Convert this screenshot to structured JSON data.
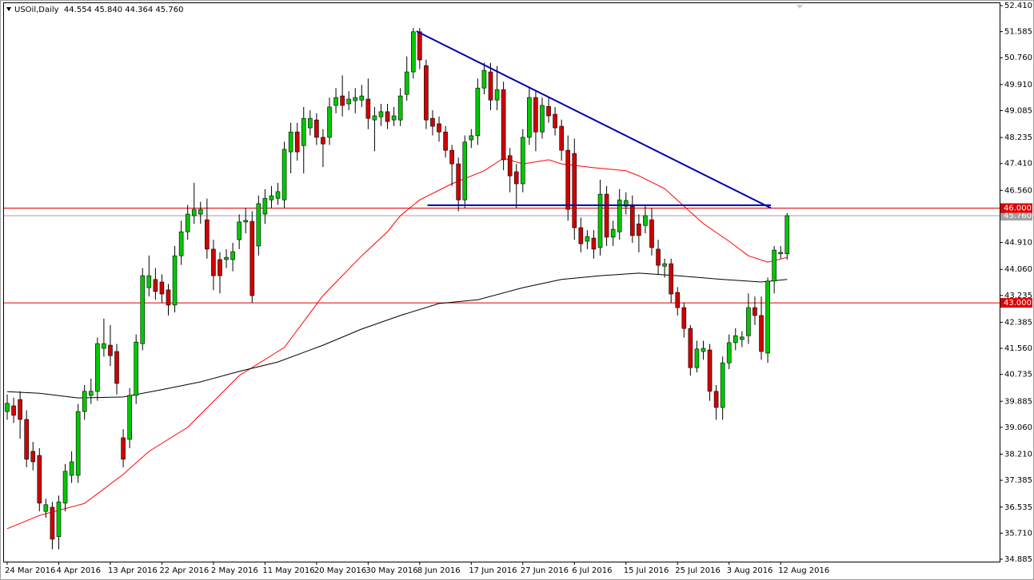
{
  "chart_data": {
    "type": "candlestick",
    "title": "USOil,Daily  44.554 45.840 44.364 45.760",
    "categories": [
      "24 Mar 2016",
      null,
      null,
      null,
      null,
      null,
      null,
      null,
      "4 Apr 2016",
      null,
      null,
      null,
      null,
      null,
      null,
      null,
      "13 Apr 2016",
      null,
      null,
      null,
      null,
      null,
      null,
      null,
      "22 Apr 2016",
      null,
      null,
      null,
      null,
      null,
      null,
      null,
      "2 May 2016",
      null,
      null,
      null,
      null,
      null,
      null,
      null,
      "11 May 2016",
      null,
      null,
      null,
      null,
      null,
      null,
      null,
      "20 May 2016",
      null,
      null,
      null,
      null,
      null,
      null,
      null,
      "30 May 2016",
      null,
      null,
      null,
      null,
      null,
      null,
      null,
      "8 Jun 2016",
      null,
      null,
      null,
      null,
      null,
      null,
      null,
      "17 Jun 2016",
      null,
      null,
      null,
      null,
      null,
      null,
      null,
      "27 Jun 2016",
      null,
      null,
      null,
      null,
      null,
      null,
      null,
      "6 Jul 2016",
      null,
      null,
      null,
      null,
      null,
      null,
      null,
      "15 Jul 2016",
      null,
      null,
      null,
      null,
      null,
      null,
      null,
      "25 Jul 2016",
      null,
      null,
      null,
      null,
      null,
      null,
      null,
      "3 Aug 2016",
      null,
      null,
      null,
      null,
      null,
      null,
      null,
      "12 Aug 2016",
      null
    ],
    "open": [
      39.56,
      39.74,
      39.94,
      39.31,
      38.3,
      38.17,
      36.4,
      36.53,
      35.6,
      36.66,
      37.54,
      37.54,
      39.56,
      40.07,
      40.2,
      41.56,
      41.66,
      41.46,
      38.73,
      38.68,
      40.07,
      41.71,
      43.48,
      43.74,
      43.66,
      43.41,
      42.93,
      44.49,
      45.25,
      45.76,
      45.81,
      45.63,
      44.7,
      44.37,
      44.37,
      44.37,
      45.0,
      45.56,
      45.58,
      44.8,
      45.81,
      46.26,
      46.31,
      46.26,
      47.78,
      48.41,
      47.98,
      48.54,
      48.79,
      48.24,
      48.24,
      49.25,
      49.55,
      49.3,
      49.4,
      49.42,
      49.45,
      48.79,
      48.89,
      49.05,
      48.79,
      48.79,
      49.6,
      50.31,
      51.58,
      50.51,
      48.84,
      48.67,
      48.41,
      47.83,
      47.4,
      46.26,
      48.16,
      48.29,
      49.8,
      50.31,
      49.42,
      49.75,
      47.66,
      47.15,
      46.77,
      48.24,
      49.5,
      48.41,
      49.22,
      48.97,
      48.59,
      47.83,
      47.73,
      45.38,
      44.95,
      45.05,
      44.75,
      46.44,
      45.08,
      45.25,
      46.06,
      46.06,
      45.5,
      45.45,
      45.63,
      44.7,
      44.16,
      44.24,
      43.33,
      42.85,
      42.19,
      40.95,
      41.46,
      41.51,
      40.2,
      39.69,
      41.1,
      41.74,
      41.84,
      41.96,
      42.85,
      42.6,
      41.41,
      43.69,
      44.55,
      44.554
    ],
    "high": [
      40.1,
      40.0,
      40.2,
      39.6,
      38.6,
      38.4,
      36.8,
      36.7,
      36.9,
      37.9,
      38.3,
      39.8,
      40.4,
      40.6,
      41.9,
      42.5,
      42.3,
      41.7,
      39.0,
      40.3,
      42.0,
      44.1,
      44.5,
      44.1,
      43.9,
      43.6,
      44.8,
      45.6,
      46.1,
      46.8,
      46.2,
      46.3,
      45.0,
      44.6,
      44.7,
      44.9,
      45.8,
      46.0,
      45.9,
      46.4,
      46.6,
      46.7,
      46.8,
      48.1,
      48.7,
      48.7,
      49.2,
      49.1,
      49.0,
      48.5,
      49.5,
      49.8,
      50.2,
      49.7,
      49.8,
      49.9,
      50.1,
      49.2,
      49.3,
      49.3,
      49.2,
      49.8,
      50.8,
      51.7,
      51.7,
      50.7,
      49.1,
      48.9,
      48.6,
      48.0,
      47.6,
      48.3,
      48.5,
      50.1,
      50.6,
      50.6,
      50.5,
      50.0,
      47.9,
      47.4,
      48.5,
      49.8,
      49.7,
      49.5,
      49.5,
      49.2,
      48.8,
      48.3,
      48.2,
      45.7,
      45.3,
      45.3,
      46.9,
      46.7,
      45.6,
      46.6,
      46.5,
      46.4,
      45.8,
      46.1,
      46.0,
      45.0,
      44.4,
      44.4,
      43.5,
      43.0,
      42.3,
      41.8,
      41.8,
      41.7,
      40.4,
      41.3,
      42.0,
      42.2,
      42.1,
      43.3,
      43.2,
      43.2,
      43.8,
      44.8,
      44.8,
      45.84
    ],
    "low": [
      39.3,
      39.2,
      38.7,
      37.8,
      37.7,
      36.4,
      36.2,
      35.2,
      35.2,
      36.4,
      37.3,
      37.3,
      39.3,
      39.8,
      39.9,
      41.3,
      41.0,
      40.1,
      37.8,
      38.4,
      39.8,
      41.5,
      43.2,
      43.1,
      43.0,
      42.6,
      42.7,
      44.2,
      45.0,
      45.5,
      45.5,
      44.4,
      43.4,
      43.3,
      44.1,
      44.0,
      44.7,
      45.2,
      43.0,
      44.5,
      45.5,
      46.0,
      46.1,
      46.0,
      47.1,
      47.5,
      47.1,
      48.3,
      48.0,
      47.3,
      48.0,
      49.0,
      48.9,
      49.1,
      49.0,
      49.2,
      48.5,
      47.8,
      48.6,
      48.5,
      48.6,
      48.6,
      49.4,
      50.1,
      50.4,
      48.5,
      48.3,
      48.1,
      47.6,
      46.7,
      45.9,
      46.0,
      47.9,
      48.0,
      49.6,
      49.1,
      49.1,
      47.2,
      46.5,
      46.0,
      46.5,
      48.0,
      47.8,
      48.2,
      48.7,
      48.3,
      47.5,
      45.6,
      45.0,
      44.6,
      44.7,
      44.4,
      44.5,
      44.8,
      44.8,
      45.0,
      45.8,
      44.9,
      44.6,
      45.2,
      44.5,
      43.9,
      43.8,
      43.0,
      42.6,
      41.9,
      40.7,
      40.8,
      41.2,
      39.9,
      39.3,
      39.3,
      40.9,
      41.5,
      41.6,
      41.7,
      42.3,
      41.2,
      41.1,
      43.3,
      44.4,
      44.364
    ],
    "close": [
      39.82,
      39.44,
      39.31,
      38.05,
      37.97,
      36.66,
      36.61,
      35.52,
      36.7,
      37.67,
      37.97,
      39.56,
      40.2,
      40.2,
      41.71,
      41.71,
      41.33,
      40.45,
      38.05,
      40.07,
      41.76,
      43.86,
      43.86,
      43.36,
      43.28,
      42.93,
      44.49,
      45.25,
      45.81,
      45.96,
      45.96,
      44.7,
      43.86,
      43.86,
      44.44,
      44.62,
      45.56,
      45.61,
      43.23,
      46.14,
      46.31,
      46.39,
      46.52,
      47.86,
      48.41,
      47.78,
      48.84,
      48.84,
      48.24,
      48.03,
      49.2,
      49.5,
      49.25,
      49.45,
      49.5,
      49.55,
      48.84,
      48.92,
      49.05,
      48.74,
      48.92,
      49.55,
      50.31,
      51.58,
      50.69,
      48.79,
      48.59,
      48.41,
      47.83,
      47.4,
      46.26,
      48.09,
      48.29,
      49.8,
      50.36,
      49.42,
      49.75,
      47.53,
      47.02,
      46.77,
      48.24,
      49.5,
      48.41,
      49.25,
      48.92,
      48.54,
      47.83,
      45.96,
      45.38,
      44.87,
      45.1,
      44.7,
      46.44,
      45.08,
      45.33,
      46.26,
      46.24,
      45.13,
      45.13,
      45.76,
      44.75,
      44.19,
      44.24,
      43.28,
      42.85,
      42.19,
      40.95,
      41.54,
      41.56,
      40.2,
      39.69,
      41.1,
      41.74,
      41.96,
      41.92,
      42.85,
      42.6,
      41.46,
      43.69,
      44.67,
      44.6,
      45.76
    ],
    "up_color": "#00c800",
    "down_color": "#d00000",
    "moving_averages": [
      {
        "color": "#ff0000",
        "x": [
          0,
          5,
          12,
          18,
          22,
          28,
          36,
          43,
          49,
          55,
          59,
          61,
          64,
          69,
          74,
          77,
          80,
          84,
          86,
          91,
          96,
          98,
          102,
          105,
          108,
          112,
          115,
          118,
          121
        ],
        "values": [
          35.85,
          36.27,
          36.65,
          37.57,
          38.3,
          39.06,
          40.7,
          41.59,
          43.23,
          44.49,
          45.25,
          45.76,
          46.26,
          46.77,
          47.18,
          47.58,
          47.4,
          47.53,
          47.4,
          47.28,
          47.18,
          47.02,
          46.62,
          46.06,
          45.51,
          44.95,
          44.49,
          44.29,
          44.44
        ]
      },
      {
        "color": "#000000",
        "x": [
          0,
          5,
          11,
          18,
          24,
          30,
          36,
          42,
          49,
          55,
          61,
          67,
          73,
          80,
          86,
          92,
          98,
          104,
          111,
          117,
          121
        ],
        "values": [
          40.19,
          40.14,
          39.99,
          40.02,
          40.25,
          40.5,
          40.83,
          41.13,
          41.66,
          42.17,
          42.6,
          42.98,
          43.1,
          43.48,
          43.74,
          43.86,
          43.94,
          43.86,
          43.74,
          43.66,
          43.74
        ]
      }
    ],
    "trendlines": [
      {
        "color": "#0000b4",
        "x": [
          63.5,
          118.5
        ],
        "y": [
          51.6,
          46.0
        ]
      },
      {
        "color": "#0000b4",
        "x": [
          65.2,
          118.5
        ],
        "y": [
          46.09,
          46.09
        ]
      }
    ],
    "hlines": [
      {
        "value": 46,
        "label": "46.000",
        "color": "#e00000"
      },
      {
        "value": 43,
        "label": "43.000",
        "color": "#e00000"
      }
    ],
    "current_price": {
      "value": 45.76,
      "label": "45.760",
      "color": "#a0a0a0"
    },
    "ylim": [
      34.885,
      52.41
    ],
    "yticks": [
      {
        "value": 52.41,
        "label": "52.410"
      },
      {
        "value": 51.585,
        "label": "51.585"
      },
      {
        "value": 50.76,
        "label": "50.760"
      },
      {
        "value": 49.91,
        "label": "49.910"
      },
      {
        "value": 49.085,
        "label": "49.085"
      },
      {
        "value": 48.235,
        "label": "48.235"
      },
      {
        "value": 47.41,
        "label": "47.410"
      },
      {
        "value": 46.56,
        "label": "46.560"
      },
      {
        "value": 44.91,
        "label": "44.910"
      },
      {
        "value": 44.06,
        "label": "44.060"
      },
      {
        "value": 43.235,
        "label": "43.235"
      },
      {
        "value": 42.385,
        "label": "42.385"
      },
      {
        "value": 41.56,
        "label": "41.560"
      },
      {
        "value": 40.735,
        "label": "40.735"
      },
      {
        "value": 39.885,
        "label": "39.885"
      },
      {
        "value": 39.06,
        "label": "39.060"
      },
      {
        "value": 38.21,
        "label": "38.210"
      },
      {
        "value": 37.385,
        "label": "37.385"
      },
      {
        "value": 36.535,
        "label": "36.535"
      },
      {
        "value": 35.71,
        "label": "35.710"
      },
      {
        "value": 34.885,
        "label": "34.885"
      }
    ],
    "grid": false
  }
}
